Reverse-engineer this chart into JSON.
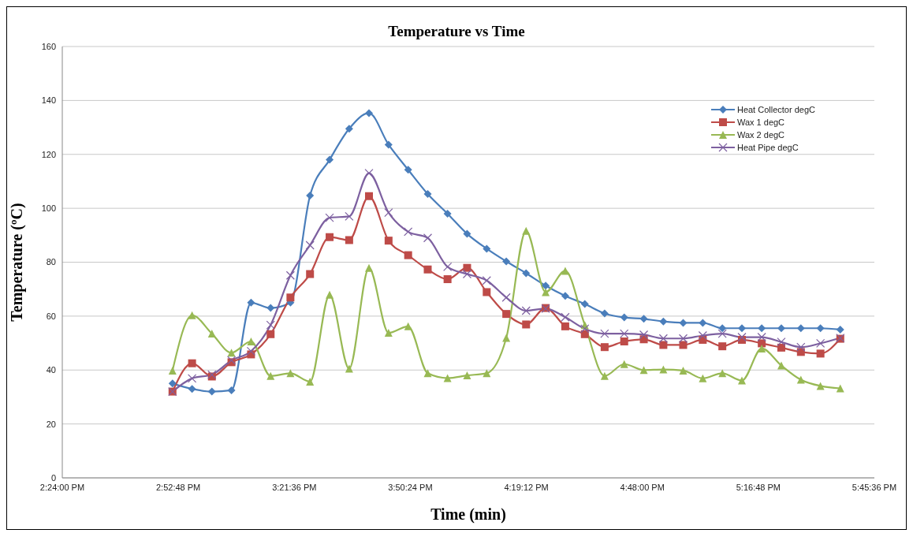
{
  "chart_data": {
    "type": "line",
    "title": "Temperature vs Time",
    "xlabel": "Time (min)",
    "ylabel": "Temperature (ºC)",
    "x": [
      14.856,
      14.937,
      15.019,
      15.1,
      15.181,
      15.262,
      15.344,
      15.425,
      15.506,
      15.587,
      15.669,
      15.75,
      15.831,
      15.912,
      15.994,
      16.075,
      16.156,
      16.237,
      16.319,
      16.4,
      16.481,
      16.562,
      16.644,
      16.725,
      16.806,
      16.887,
      16.969,
      17.05,
      17.131,
      17.212,
      17.294,
      17.375,
      17.456,
      17.537,
      17.619
    ],
    "series": [
      {
        "name": "Heat Collector degC",
        "color": "#4a7ebb",
        "marker": "diamond",
        "values": [
          35,
          33,
          32,
          32.5,
          65,
          63,
          65,
          104.7,
          118,
          129.5,
          135.3,
          123.6,
          114.3,
          105.3,
          98,
          90.5,
          85,
          80.3,
          75.9,
          71.3,
          67.5,
          64.5,
          61,
          59.5,
          59,
          58,
          57.5,
          57.5,
          55.5,
          55.5,
          55.5,
          55.5,
          55.5,
          55.5,
          55
        ]
      },
      {
        "name": "Wax 1 degC",
        "color": "#be4b48",
        "marker": "square",
        "values": [
          32,
          42.5,
          37.6,
          42.9,
          45.8,
          53.3,
          66.9,
          75.6,
          89.3,
          88.2,
          104.5,
          88,
          82.6,
          77.3,
          73.7,
          77.9,
          68.9,
          60.8,
          56.9,
          63,
          56.2,
          53.3,
          48.5,
          50.6,
          51.4,
          49.3,
          49.3,
          51.2,
          48.8,
          51.2,
          49.9,
          48.3,
          46.7,
          46.1,
          51.6
        ]
      },
      {
        "name": "Wax 2 degC",
        "color": "#98b954",
        "marker": "triangle",
        "values": [
          39.8,
          60.3,
          53.5,
          46.4,
          50.6,
          37.8,
          38.8,
          35.7,
          67.9,
          40.5,
          77.9,
          53.8,
          56.2,
          38.8,
          37,
          38,
          38.8,
          51.9,
          91.6,
          68.9,
          76.8,
          56.7,
          37.8,
          42.2,
          40,
          40.2,
          39.8,
          36.9,
          38.8,
          36.1,
          48,
          41.7,
          36.4,
          34.1,
          33.2
        ]
      },
      {
        "name": "Heat Pipe degC",
        "color": "#7d60a0",
        "marker": "cross",
        "values": [
          32,
          36.9,
          38.3,
          43.6,
          47,
          56.7,
          75.1,
          86.3,
          96.5,
          97,
          113,
          98.4,
          91.3,
          89,
          78.3,
          75.6,
          73.2,
          66.9,
          62,
          62.8,
          59.6,
          55.3,
          53.5,
          53.5,
          53.1,
          51.7,
          51.7,
          52.8,
          53.5,
          52.2,
          52.2,
          50.4,
          48.5,
          49.9,
          51.9
        ]
      }
    ],
    "xlim": [
      14.4,
      17.76
    ],
    "xticks": [
      {
        "value": 14.4,
        "label": "2:24:00 PM"
      },
      {
        "value": 14.88,
        "label": "2:52:48 PM"
      },
      {
        "value": 15.36,
        "label": "3:21:36 PM"
      },
      {
        "value": 15.84,
        "label": "3:50:24 PM"
      },
      {
        "value": 16.32,
        "label": "4:19:12 PM"
      },
      {
        "value": 16.8,
        "label": "4:48:00 PM"
      },
      {
        "value": 17.28,
        "label": "5:16:48 PM"
      },
      {
        "value": 17.76,
        "label": "5:45:36 PM"
      }
    ],
    "ylim": [
      0,
      160
    ],
    "yticks": [
      0,
      20,
      40,
      60,
      80,
      100,
      120,
      140,
      160
    ],
    "grid": "y",
    "legend": "top right",
    "line_style": "solid"
  }
}
